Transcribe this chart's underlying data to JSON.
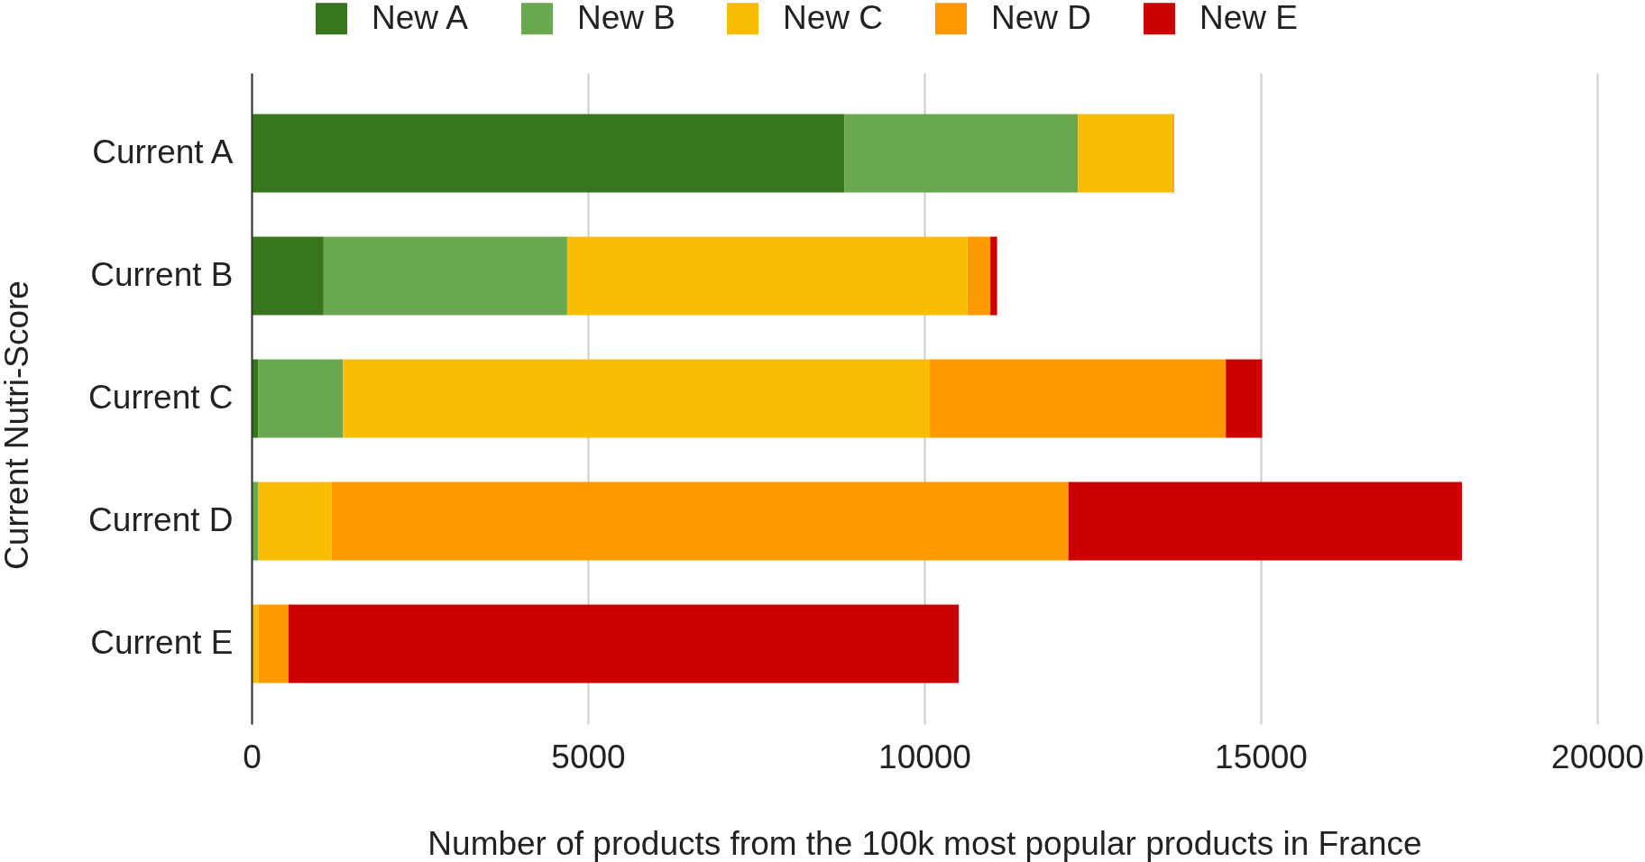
{
  "chart_data": {
    "type": "bar",
    "orientation": "horizontal",
    "stacked": true,
    "xlabel": "Number of products from the 100k most popular products in France",
    "ylabel": "Current Nutri-Score",
    "categories": [
      "Current A",
      "Current B",
      "Current C",
      "Current D",
      "Current E"
    ],
    "series": [
      {
        "name": "New A",
        "color": "#38761d",
        "values": [
          8810,
          1070,
          100,
          0,
          0
        ]
      },
      {
        "name": "New B",
        "color": "#6aa84f",
        "values": [
          3470,
          3620,
          1260,
          100,
          0
        ]
      },
      {
        "name": "New C",
        "color": "#fbbc04",
        "values": [
          1400,
          5950,
          8720,
          1090,
          100
        ]
      },
      {
        "name": "New D",
        "color": "#ff9900",
        "values": [
          30,
          340,
          4400,
          10950,
          450
        ]
      },
      {
        "name": "New E",
        "color": "#cc0000",
        "values": [
          0,
          100,
          540,
          5850,
          9960
        ]
      }
    ],
    "xlim": [
      0,
      20000
    ],
    "xticks": [
      0,
      5000,
      10000,
      15000,
      20000
    ],
    "grid": "x",
    "legend": "top"
  }
}
